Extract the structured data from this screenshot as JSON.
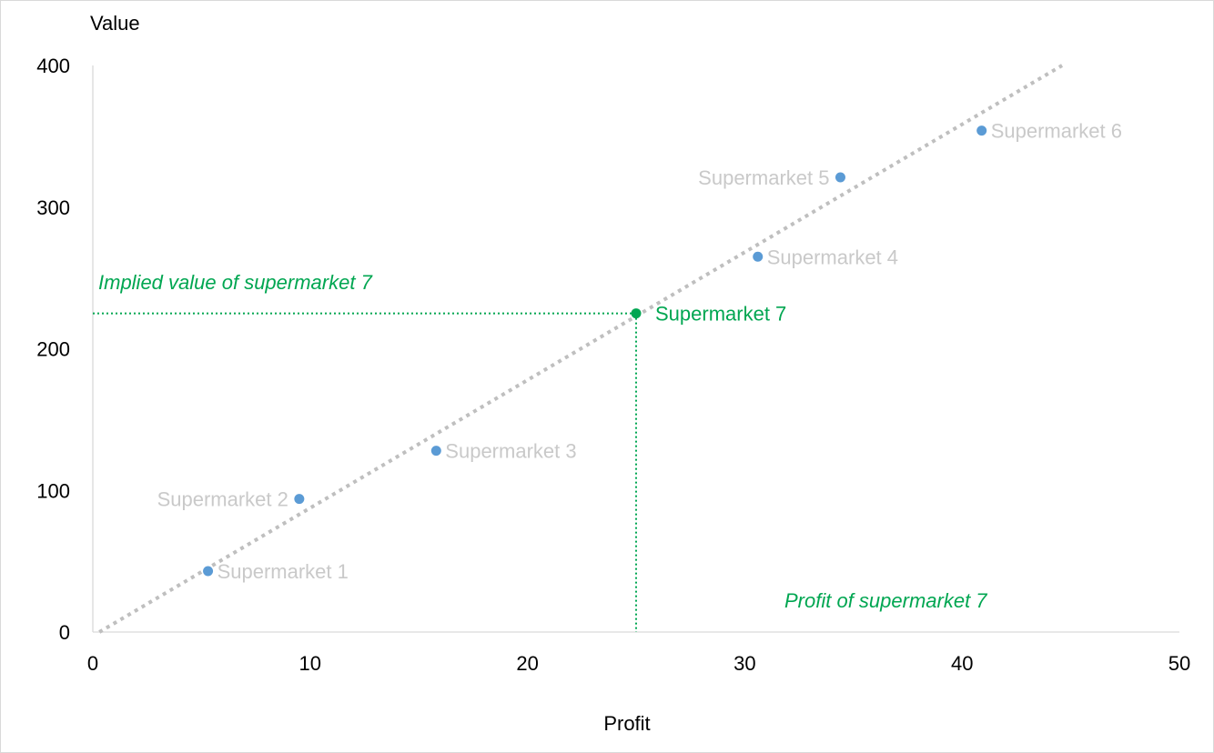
{
  "chart_data": {
    "type": "scatter",
    "xlabel": "Profit",
    "ylabel": "Value",
    "xlim": [
      0,
      50
    ],
    "ylim": [
      0,
      400
    ],
    "xticks": [
      0,
      10,
      20,
      30,
      40,
      50
    ],
    "yticks": [
      0,
      100,
      200,
      300,
      400
    ],
    "grid": false,
    "points": [
      {
        "label": "Supermarket 1",
        "x": 5.3,
        "y": 43
      },
      {
        "label": "Supermarket 2",
        "x": 9.5,
        "y": 94
      },
      {
        "label": "Supermarket 3",
        "x": 15.8,
        "y": 128
      },
      {
        "label": "Supermarket 4",
        "x": 30.6,
        "y": 265
      },
      {
        "label": "Supermarket 5",
        "x": 34.4,
        "y": 321
      },
      {
        "label": "Supermarket 6",
        "x": 40.9,
        "y": 354
      }
    ],
    "highlight": {
      "label": "Supermarket 7",
      "x": 25,
      "y": 225
    },
    "trendline": {
      "x": [
        0.3,
        44.6
      ],
      "y": [
        0,
        400
      ]
    },
    "annotations": {
      "implied_value": "Implied value of supermarket 7",
      "profit": "Profit of supermarket 7"
    },
    "colors": {
      "points": "#5b9bd5",
      "highlight": "#00a651",
      "trendline": "#bfbfbf",
      "point_labels": "#c9c9c9",
      "axis": "#d9d9d9"
    }
  }
}
